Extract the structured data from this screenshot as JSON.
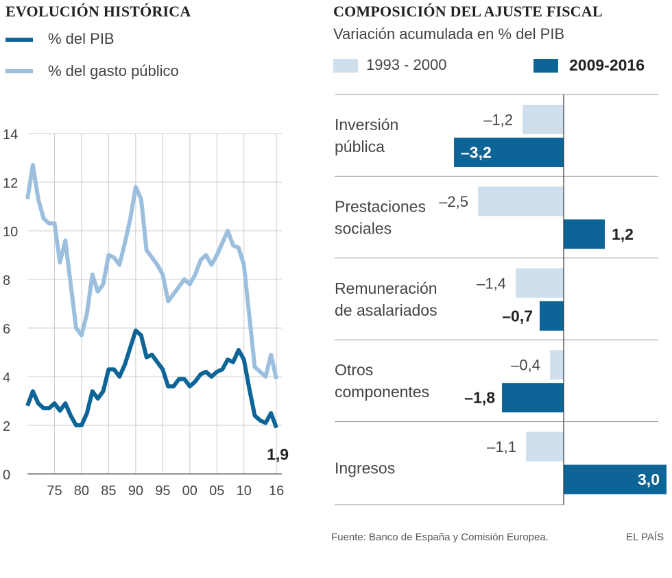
{
  "colors": {
    "dark": "#0d6496",
    "light": "#9cbfde",
    "lightBar": "#cfdfee",
    "grid": "#cccccc",
    "axis": "#555555"
  },
  "left": {
    "title": "EVOLUCIÓN HISTÓRICA",
    "legend": [
      {
        "label": "% del PIB",
        "color": "#0d6496"
      },
      {
        "label": "% del gasto público",
        "color": "#9cbfde"
      }
    ]
  },
  "right": {
    "title": "COMPOSICIÓN DEL AJUSTE FISCAL",
    "subtitle": "Variación acumulada en % del PIB",
    "legend": [
      {
        "label": "1993 - 2000",
        "color": "#cfdfee"
      },
      {
        "label": "2009-2016",
        "color": "#0d6496"
      }
    ]
  },
  "source": "Fuente: Banco de España y Comisión Europea.",
  "brand": "EL PAÍS",
  "chart_data": [
    {
      "type": "line",
      "title": "EVOLUCIÓN HISTÓRICA",
      "xlim": [
        1970,
        2017
      ],
      "ylim": [
        0,
        14
      ],
      "yticks": [
        0,
        2,
        4,
        6,
        8,
        10,
        12,
        14
      ],
      "xtick_values": [
        1975,
        1980,
        1985,
        1990,
        1995,
        2000,
        2005,
        2010,
        2016
      ],
      "xtick_labels": [
        "75",
        "80",
        "85",
        "90",
        "95",
        "00",
        "05",
        "10",
        "16"
      ],
      "end_label": "1,9",
      "series": [
        {
          "name": "% del PIB",
          "color": "#0d6496",
          "x": [
            1970,
            1971,
            1972,
            1973,
            1974,
            1975,
            1976,
            1977,
            1978,
            1979,
            1980,
            1981,
            1982,
            1983,
            1984,
            1985,
            1986,
            1987,
            1988,
            1989,
            1990,
            1991,
            1992,
            1993,
            1994,
            1995,
            1996,
            1997,
            1998,
            1999,
            2000,
            2001,
            2002,
            2003,
            2004,
            2005,
            2006,
            2007,
            2008,
            2009,
            2010,
            2011,
            2012,
            2013,
            2014,
            2015,
            2016
          ],
          "values": [
            2.8,
            3.4,
            2.9,
            2.7,
            2.7,
            2.9,
            2.6,
            2.9,
            2.4,
            2.0,
            2.0,
            2.5,
            3.4,
            3.1,
            3.4,
            4.3,
            4.3,
            4.0,
            4.5,
            5.2,
            5.9,
            5.7,
            4.8,
            4.9,
            4.6,
            4.3,
            3.6,
            3.6,
            3.9,
            3.9,
            3.6,
            3.8,
            4.1,
            4.2,
            4.0,
            4.2,
            4.3,
            4.7,
            4.6,
            5.1,
            4.7,
            3.5,
            2.4,
            2.2,
            2.1,
            2.5,
            1.9
          ]
        },
        {
          "name": "% del gasto público",
          "color": "#9cbfde",
          "x": [
            1970,
            1971,
            1972,
            1973,
            1974,
            1975,
            1976,
            1977,
            1978,
            1979,
            1980,
            1981,
            1982,
            1983,
            1984,
            1985,
            1986,
            1987,
            1988,
            1989,
            1990,
            1991,
            1992,
            1993,
            1994,
            1995,
            1996,
            1997,
            1998,
            1999,
            2000,
            2001,
            2002,
            2003,
            2004,
            2005,
            2006,
            2007,
            2008,
            2009,
            2010,
            2011,
            2012,
            2013,
            2014,
            2015,
            2016
          ],
          "values": [
            11.3,
            12.7,
            11.3,
            10.5,
            10.3,
            10.3,
            8.7,
            9.6,
            7.8,
            6.0,
            5.7,
            6.6,
            8.2,
            7.5,
            7.8,
            9.0,
            8.9,
            8.6,
            9.5,
            10.5,
            11.8,
            11.3,
            9.2,
            8.9,
            8.6,
            8.2,
            7.1,
            7.4,
            7.7,
            8.0,
            7.8,
            8.2,
            8.8,
            9.0,
            8.6,
            9.0,
            9.5,
            10.0,
            9.4,
            9.3,
            8.6,
            6.5,
            4.4,
            4.2,
            4.0,
            4.9,
            3.9
          ]
        }
      ]
    },
    {
      "type": "bar",
      "title": "COMPOSICIÓN DEL AJUSTE FISCAL",
      "ylabel": "Variación acumulada en % del PIB",
      "categories": [
        [
          "Inversión",
          "pública"
        ],
        [
          "Prestaciones",
          "sociales"
        ],
        [
          "Remuneración",
          "de asalariados"
        ],
        [
          "Otros",
          "componentes"
        ],
        [
          "Ingresos"
        ]
      ],
      "series": [
        {
          "name": "1993 - 2000",
          "color": "#cfdfee",
          "values": [
            -1.2,
            -2.5,
            -1.4,
            -0.4,
            -1.1
          ],
          "labels": [
            "–1,2",
            "–2,5",
            "–1,4",
            "–0,4",
            "–1,1"
          ]
        },
        {
          "name": "2009-2016",
          "color": "#0d6496",
          "values": [
            -3.2,
            1.2,
            -0.7,
            -1.8,
            3.0
          ],
          "labels": [
            "–3,2",
            "1,2",
            "–0,7",
            "–1,8",
            "3,0"
          ]
        }
      ]
    }
  ]
}
